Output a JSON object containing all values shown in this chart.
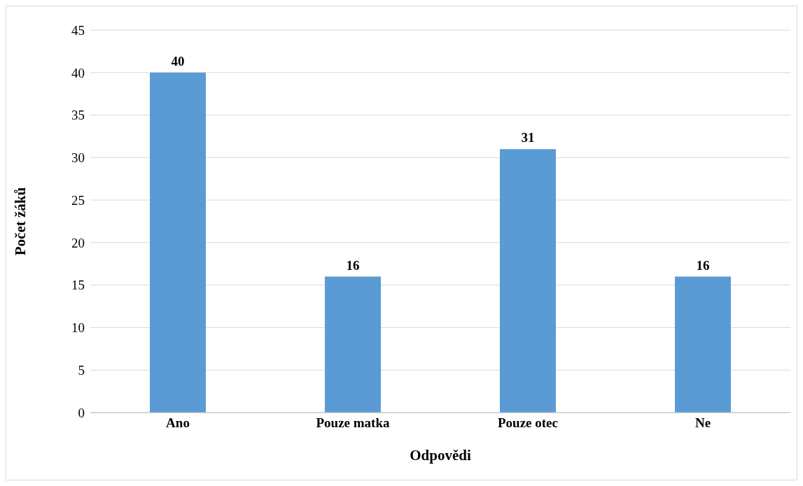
{
  "chart_data": {
    "type": "bar",
    "xlabel": "Odpovědi",
    "ylabel": "Počet žáků",
    "categories": [
      "Ano",
      "Pouze matka",
      "Pouze otec",
      "Ne"
    ],
    "values": [
      40,
      16,
      31,
      16
    ],
    "color": "#5b9bd5",
    "ylim": [
      0,
      45
    ],
    "yticks": [
      0,
      5,
      10,
      15,
      20,
      25,
      30,
      35,
      40,
      45
    ],
    "grid": "y",
    "data_labels": true,
    "legend": false
  }
}
